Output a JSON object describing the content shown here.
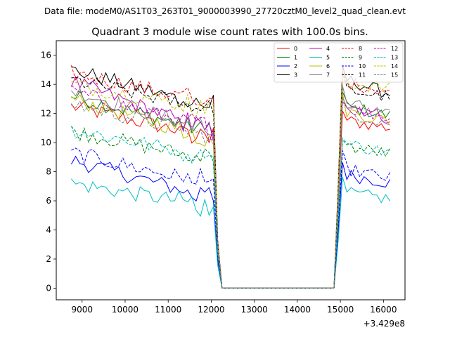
{
  "chart_data": {
    "type": "line",
    "suptitle": "Data file: modeM0/AS1T03_263T01_9000003990_27720cztM0_level2_quad_clean.evt",
    "title": "Quadrant 3 module wise count rates with 100.0s bins.",
    "xlabel": "",
    "ylabel": "",
    "x_offset_label": "+3.429e8",
    "xlim": [
      8400,
      16500
    ],
    "ylim": [
      -0.8,
      17
    ],
    "xticks": [
      9000,
      10000,
      11000,
      12000,
      13000,
      14000,
      15000,
      16000
    ],
    "xtick_labels": [
      "9000",
      "10000",
      "11000",
      "12000",
      "13000",
      "14000",
      "15000",
      "16000"
    ],
    "yticks": [
      0,
      2,
      4,
      6,
      8,
      10,
      12,
      14,
      16
    ],
    "ytick_labels": [
      "0",
      "2",
      "4",
      "6",
      "8",
      "10",
      "12",
      "14",
      "16"
    ],
    "grid": false,
    "legend_position": "top-right",
    "segments": [
      {
        "start": 8750,
        "n": 35,
        "step": 100
      },
      {
        "start": 12150,
        "n": 1,
        "step": 100
      },
      {
        "start": 12250,
        "n": 27,
        "step": 100
      },
      {
        "start": 14850,
        "n": 14,
        "step": 100
      }
    ],
    "series": [
      {
        "name": "0",
        "color": "#ff0000",
        "dash": false,
        "level1": 12.5,
        "trend1": -2.2,
        "level2": 11.6,
        "trend2": -0.6
      },
      {
        "name": "1",
        "color": "#008000",
        "dash": false,
        "level1": 13.2,
        "trend1": -2.5,
        "level2": 12.6,
        "trend2": -0.8
      },
      {
        "name": "2",
        "color": "#0000ff",
        "dash": false,
        "level1": 8.8,
        "trend1": -2.6,
        "level2": 7.9,
        "trend2": -0.7
      },
      {
        "name": "3",
        "color": "#000000",
        "dash": false,
        "level1": 15.0,
        "trend1": -2.6,
        "level2": 14.5,
        "trend2": -1.2
      },
      {
        "name": "4",
        "color": "#bf00bf",
        "dash": false,
        "level1": 14.2,
        "trend1": -3.5,
        "level2": 12.8,
        "trend2": -1.2
      },
      {
        "name": "5",
        "color": "#00bfbf",
        "dash": false,
        "level1": 7.2,
        "trend1": -1.6,
        "level2": 6.6,
        "trend2": -0.5
      },
      {
        "name": "6",
        "color": "#bfbf00",
        "dash": false,
        "level1": 13.0,
        "trend1": -2.7,
        "level2": 12.3,
        "trend2": -0.9
      },
      {
        "name": "7",
        "color": "#808080",
        "dash": false,
        "level1": 13.6,
        "trend1": -2.8,
        "level2": 12.9,
        "trend2": -1.1
      },
      {
        "name": "8",
        "color": "#ff0000",
        "dash": true,
        "level1": 14.8,
        "trend1": -2.1,
        "level2": 14.2,
        "trend2": -0.7
      },
      {
        "name": "9",
        "color": "#008000",
        "dash": true,
        "level1": 10.8,
        "trend1": -2.0,
        "level2": 9.8,
        "trend2": -0.6
      },
      {
        "name": "10",
        "color": "#0000ff",
        "dash": true,
        "level1": 9.3,
        "trend1": -2.2,
        "level2": 8.3,
        "trend2": -0.8
      },
      {
        "name": "11",
        "color": "#000000",
        "dash": true,
        "level1": 14.3,
        "trend1": -2.0,
        "level2": 13.7,
        "trend2": -0.6
      },
      {
        "name": "12",
        "color": "#bf00bf",
        "dash": true,
        "level1": 13.5,
        "trend1": -2.6,
        "level2": 12.5,
        "trend2": -0.8
      },
      {
        "name": "13",
        "color": "#00bfbf",
        "dash": true,
        "level1": 10.9,
        "trend1": -1.9,
        "level2": 10.0,
        "trend2": -0.7
      },
      {
        "name": "14",
        "color": "#bfbf00",
        "dash": true,
        "level1": 14.0,
        "trend1": -1.7,
        "level2": 14.2,
        "trend2": -0.5
      },
      {
        "name": "15",
        "color": "#808080",
        "dash": true,
        "level1": 12.7,
        "trend1": -2.3,
        "level2": 12.2,
        "trend2": -0.9
      }
    ]
  }
}
